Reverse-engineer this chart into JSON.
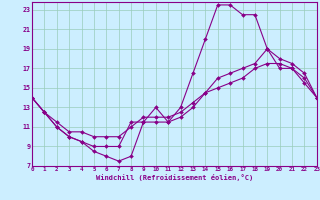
{
  "xlabel": "Windchill (Refroidissement éolien,°C)",
  "bg_color": "#cceeff",
  "line_color": "#880088",
  "grid_color": "#99ccbb",
  "xlim": [
    0,
    23
  ],
  "ylim": [
    7,
    23.8
  ],
  "yticks": [
    7,
    9,
    11,
    13,
    15,
    17,
    19,
    21,
    23
  ],
  "xticks": [
    0,
    1,
    2,
    3,
    4,
    5,
    6,
    7,
    8,
    9,
    10,
    11,
    12,
    13,
    14,
    15,
    16,
    17,
    18,
    19,
    20,
    21,
    22,
    23
  ],
  "line1_x": [
    0,
    1,
    2,
    3,
    4,
    5,
    6,
    7,
    8,
    9,
    10,
    11,
    12,
    13,
    14,
    15,
    16,
    17,
    18,
    19,
    20,
    21,
    22,
    23
  ],
  "line1_y": [
    14.0,
    12.5,
    11.0,
    10.0,
    9.5,
    8.5,
    8.0,
    7.5,
    8.0,
    11.5,
    13.0,
    11.5,
    13.0,
    16.5,
    20.0,
    23.5,
    23.5,
    22.5,
    22.5,
    19.0,
    17.0,
    17.0,
    15.5,
    14.0
  ],
  "line2_x": [
    0,
    1,
    2,
    3,
    4,
    5,
    6,
    7,
    8,
    9,
    10,
    11,
    12,
    13,
    14,
    15,
    16,
    17,
    18,
    19,
    20,
    21,
    22,
    23
  ],
  "line2_y": [
    14.0,
    12.5,
    11.0,
    10.0,
    9.5,
    9.0,
    9.0,
    9.0,
    11.5,
    11.5,
    11.5,
    11.5,
    12.0,
    13.0,
    14.5,
    16.0,
    16.5,
    17.0,
    17.5,
    19.0,
    18.0,
    17.5,
    16.5,
    14.0
  ],
  "line3_x": [
    0,
    1,
    2,
    3,
    4,
    5,
    6,
    7,
    8,
    9,
    10,
    11,
    12,
    13,
    14,
    15,
    16,
    17,
    18,
    19,
    20,
    21,
    22,
    23
  ],
  "line3_y": [
    14.0,
    12.5,
    11.5,
    10.5,
    10.5,
    10.0,
    10.0,
    10.0,
    11.0,
    12.0,
    12.0,
    12.0,
    12.5,
    13.5,
    14.5,
    15.0,
    15.5,
    16.0,
    17.0,
    17.5,
    17.5,
    17.0,
    16.0,
    14.0
  ]
}
